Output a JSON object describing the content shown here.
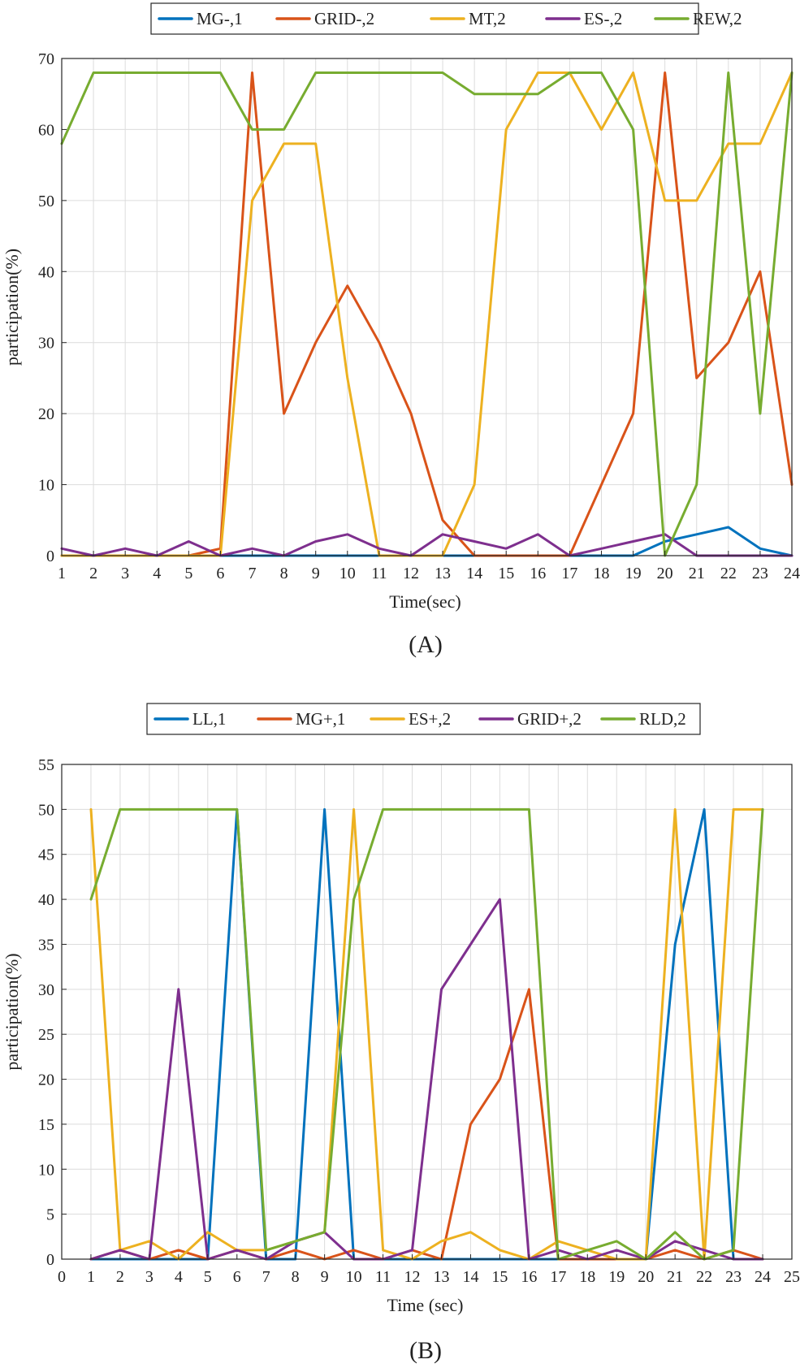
{
  "chart_data": [
    {
      "type": "line",
      "panel_label": "(A)",
      "xlabel": "Time(sec)",
      "ylabel": "participation(%)",
      "xlim": [
        1,
        24
      ],
      "ylim": [
        0,
        70
      ],
      "x_ticks": [
        1,
        2,
        3,
        4,
        5,
        6,
        7,
        8,
        9,
        10,
        11,
        12,
        13,
        14,
        15,
        16,
        17,
        18,
        19,
        20,
        21,
        22,
        23,
        24
      ],
      "y_ticks": [
        0,
        10,
        20,
        30,
        40,
        50,
        60,
        70
      ],
      "grid": true,
      "legend_position": "top-center",
      "x": [
        1,
        2,
        3,
        4,
        5,
        6,
        7,
        8,
        9,
        10,
        11,
        12,
        13,
        14,
        15,
        16,
        17,
        18,
        19,
        20,
        21,
        22,
        23,
        24
      ],
      "series": [
        {
          "name": "MG-,1",
          "color": "#0072BD",
          "values": [
            0,
            0,
            0,
            0,
            0,
            0,
            0,
            0,
            0,
            0,
            0,
            0,
            0,
            0,
            0,
            0,
            0,
            0,
            0,
            2,
            3,
            4,
            1,
            0
          ]
        },
        {
          "name": "GRID-,2",
          "color": "#D95319",
          "values": [
            0,
            0,
            0,
            0,
            0,
            1,
            68,
            20,
            30,
            38,
            30,
            20,
            5,
            0,
            0,
            0,
            0,
            10,
            20,
            68,
            25,
            30,
            40,
            10
          ]
        },
        {
          "name": "MT,2",
          "color": "#EDB120",
          "values": [
            0,
            0,
            0,
            0,
            0,
            0,
            50,
            58,
            58,
            25,
            0,
            0,
            0,
            10,
            60,
            68,
            68,
            60,
            68,
            50,
            50,
            58,
            58,
            68
          ]
        },
        {
          "name": "ES-,2",
          "color": "#7E2F8E",
          "values": [
            1,
            0,
            1,
            0,
            2,
            0,
            1,
            0,
            2,
            3,
            1,
            0,
            3,
            2,
            1,
            3,
            0,
            1,
            2,
            3,
            0,
            0,
            0,
            0
          ]
        },
        {
          "name": "REW,2",
          "color": "#77AC30",
          "values": [
            58,
            68,
            68,
            68,
            68,
            68,
            60,
            60,
            68,
            68,
            68,
            68,
            68,
            65,
            65,
            65,
            68,
            68,
            60,
            0,
            10,
            68,
            20,
            68
          ]
        }
      ]
    },
    {
      "type": "line",
      "panel_label": "(B)",
      "xlabel": "Time (sec)",
      "ylabel": "participation(%)",
      "xlim": [
        0,
        25
      ],
      "ylim": [
        0,
        55
      ],
      "x_ticks": [
        0,
        1,
        2,
        3,
        4,
        5,
        6,
        7,
        8,
        9,
        10,
        11,
        12,
        13,
        14,
        15,
        16,
        17,
        18,
        19,
        20,
        21,
        22,
        23,
        24,
        25
      ],
      "y_ticks": [
        0,
        5,
        10,
        15,
        20,
        25,
        30,
        35,
        40,
        45,
        50,
        55
      ],
      "grid": true,
      "legend_position": "top-center",
      "x": [
        1,
        2,
        3,
        4,
        5,
        6,
        7,
        8,
        9,
        10,
        11,
        12,
        13,
        14,
        15,
        16,
        17,
        18,
        19,
        20,
        21,
        22,
        23,
        24
      ],
      "series": [
        {
          "name": "LL,1",
          "color": "#0072BD",
          "values": [
            0,
            0,
            0,
            0,
            0,
            50,
            0,
            0,
            50,
            0,
            0,
            0,
            0,
            0,
            0,
            0,
            0,
            0,
            0,
            0,
            35,
            50,
            0,
            0
          ]
        },
        {
          "name": "MG+,1",
          "color": "#D95319",
          "values": [
            0,
            1,
            0,
            1,
            0,
            1,
            0,
            1,
            0,
            1,
            0,
            1,
            0,
            15,
            20,
            30,
            0,
            0,
            0,
            0,
            1,
            0,
            1,
            0
          ]
        },
        {
          "name": "ES+,2",
          "color": "#EDB120",
          "values": [
            50,
            1,
            2,
            0,
            3,
            1,
            1,
            2,
            3,
            50,
            1,
            0,
            2,
            3,
            1,
            0,
            2,
            1,
            0,
            0,
            50,
            0,
            50,
            50
          ]
        },
        {
          "name": "GRID+,2",
          "color": "#7E2F8E",
          "values": [
            0,
            1,
            0,
            30,
            0,
            1,
            0,
            2,
            3,
            0,
            0,
            1,
            30,
            35,
            40,
            0,
            1,
            0,
            1,
            0,
            2,
            1,
            0,
            0
          ]
        },
        {
          "name": "RLD,2",
          "color": "#77AC30",
          "values": [
            40,
            50,
            50,
            50,
            50,
            50,
            1,
            2,
            3,
            40,
            50,
            50,
            50,
            50,
            50,
            50,
            0,
            1,
            2,
            0,
            3,
            0,
            1,
            50
          ]
        }
      ]
    }
  ]
}
